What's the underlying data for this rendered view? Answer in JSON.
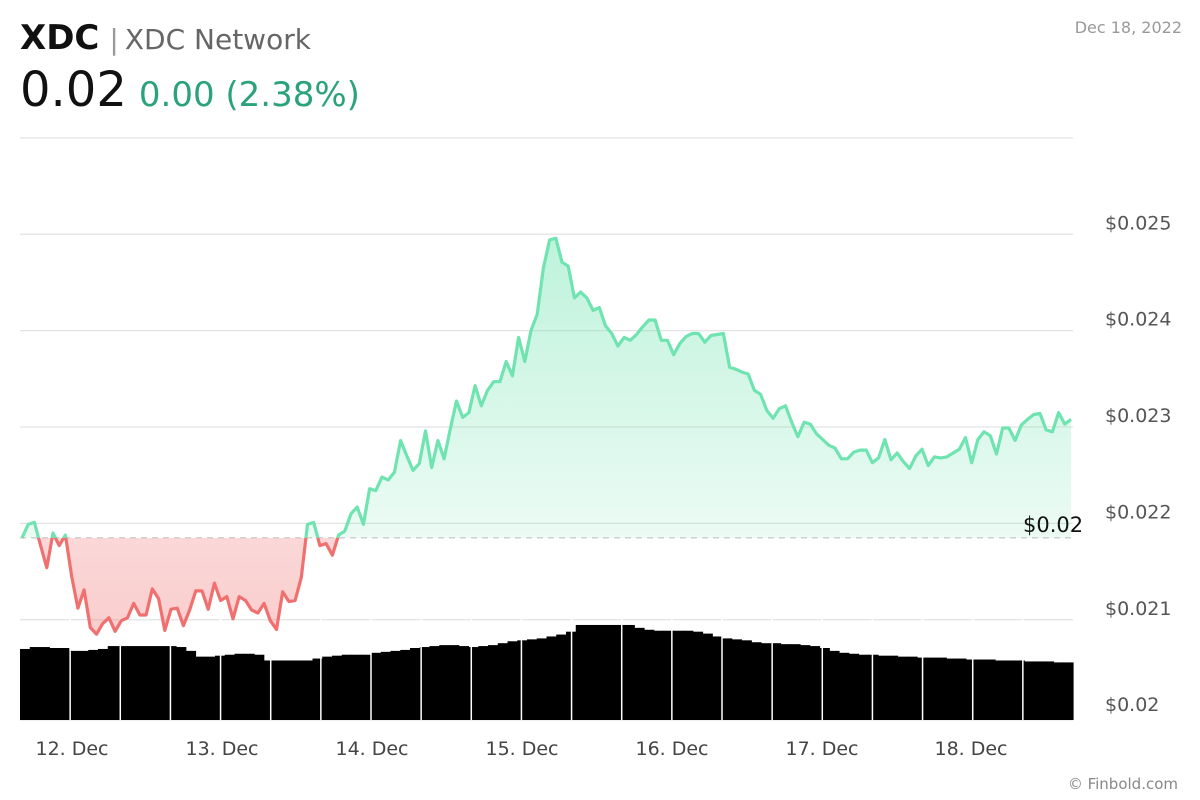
{
  "header": {
    "symbol": "XDC",
    "separator": "|",
    "name": "XDC Network",
    "price": "0.02",
    "change": "0.00 (2.38%)",
    "date": "Dec 18, 2022"
  },
  "footer": {
    "credit": "© Finbold.com"
  },
  "colors": {
    "up": "#6fe3b0",
    "down": "#f07070",
    "change_text": "#2aa37a",
    "volume": "#000000",
    "grid": "#e3e3e3",
    "baseline": "#cccccc"
  },
  "chart_data": {
    "type": "line",
    "x_axis": {
      "type": "date",
      "tick_labels": [
        "12. Dec",
        "13. Dec",
        "14. Dec",
        "15. Dec",
        "16. Dec",
        "17. Dec",
        "18. Dec"
      ],
      "range": [
        "2022-12-11T18:00",
        "2022-12-18T20:30"
      ]
    },
    "y_axis": {
      "tick_labels": [
        "$0.025",
        "$0.024",
        "$0.023",
        "$0.022",
        "$0.021",
        "$0.02"
      ],
      "range": [
        0.01996,
        0.02603
      ],
      "position": "right"
    },
    "current_price_label": "$0.02",
    "baseline": 0.02185,
    "grid": true,
    "series": [
      {
        "values": [
          0.02185,
          0.02199,
          0.02201,
          0.02177,
          0.02154,
          0.0219,
          0.02177,
          0.02188,
          0.02145,
          0.02112,
          0.02131,
          0.02092,
          0.02085,
          0.02096,
          0.02102,
          0.02088,
          0.02099,
          0.02102,
          0.02117,
          0.02105,
          0.02105,
          0.02132,
          0.02122,
          0.02089,
          0.02111,
          0.02112,
          0.02094,
          0.0211,
          0.0213,
          0.0213,
          0.02111,
          0.02138,
          0.0212,
          0.02124,
          0.02101,
          0.02124,
          0.0212,
          0.0211,
          0.02107,
          0.02117,
          0.02099,
          0.0209,
          0.02129,
          0.02119,
          0.0212,
          0.02144,
          0.02199,
          0.02201,
          0.02177,
          0.02179,
          0.02167,
          0.02188,
          0.02192,
          0.0221,
          0.02217,
          0.02199,
          0.02236,
          0.02234,
          0.02248,
          0.02245,
          0.02253,
          0.02286,
          0.0227,
          0.02255,
          0.02262,
          0.02296,
          0.02258,
          0.02286,
          0.02267,
          0.02298,
          0.02327,
          0.0231,
          0.02315,
          0.02343,
          0.02322,
          0.02338,
          0.02347,
          0.02347,
          0.02368,
          0.02353,
          0.02393,
          0.02368,
          0.024,
          0.02417,
          0.02465,
          0.02494,
          0.02496,
          0.02471,
          0.02467,
          0.02434,
          0.0244,
          0.02434,
          0.02421,
          0.02424,
          0.02405,
          0.02397,
          0.02384,
          0.02393,
          0.0239,
          0.02396,
          0.02404,
          0.02411,
          0.02411,
          0.0239,
          0.0239,
          0.02375,
          0.02387,
          0.02394,
          0.02397,
          0.02397,
          0.02388,
          0.02395,
          0.02396,
          0.02397,
          0.02362,
          0.0236,
          0.02357,
          0.02355,
          0.02338,
          0.02334,
          0.02317,
          0.02309,
          0.02319,
          0.02322,
          0.02305,
          0.0229,
          0.02305,
          0.02303,
          0.02293,
          0.02287,
          0.02281,
          0.02278,
          0.02267,
          0.02267,
          0.02274,
          0.02276,
          0.02276,
          0.02263,
          0.02268,
          0.02287,
          0.02266,
          0.02273,
          0.02264,
          0.02257,
          0.0227,
          0.02277,
          0.0226,
          0.02269,
          0.02268,
          0.02269,
          0.02273,
          0.02277,
          0.02289,
          0.02263,
          0.02287,
          0.02295,
          0.02291,
          0.02272,
          0.02299,
          0.02299,
          0.02286,
          0.02302,
          0.02308,
          0.02313,
          0.02314,
          0.02297,
          0.02295,
          0.02315,
          0.02303,
          0.02308
        ]
      }
    ],
    "volume": {
      "values": [
        0.74,
        0.76,
        0.76,
        0.75,
        0.75,
        0.72,
        0.72,
        0.73,
        0.74,
        0.77,
        0.77,
        0.77,
        0.77,
        0.77,
        0.77,
        0.77,
        0.76,
        0.72,
        0.66,
        0.66,
        0.67,
        0.68,
        0.69,
        0.69,
        0.68,
        0.62,
        0.62,
        0.62,
        0.62,
        0.62,
        0.64,
        0.66,
        0.67,
        0.68,
        0.68,
        0.68,
        0.7,
        0.71,
        0.72,
        0.73,
        0.75,
        0.76,
        0.77,
        0.78,
        0.78,
        0.77,
        0.76,
        0.77,
        0.78,
        0.8,
        0.82,
        0.83,
        0.84,
        0.85,
        0.87,
        0.89,
        0.92,
        0.99,
        0.99,
        0.99,
        0.99,
        0.99,
        0.99,
        0.96,
        0.94,
        0.93,
        0.93,
        0.93,
        0.93,
        0.92,
        0.9,
        0.87,
        0.85,
        0.84,
        0.83,
        0.81,
        0.8,
        0.8,
        0.79,
        0.79,
        0.78,
        0.77,
        0.75,
        0.72,
        0.7,
        0.69,
        0.68,
        0.68,
        0.67,
        0.67,
        0.66,
        0.66,
        0.65,
        0.65,
        0.65,
        0.64,
        0.64,
        0.63,
        0.63,
        0.63,
        0.62,
        0.62,
        0.62,
        0.61,
        0.61,
        0.61,
        0.6,
        0.6
      ]
    }
  }
}
